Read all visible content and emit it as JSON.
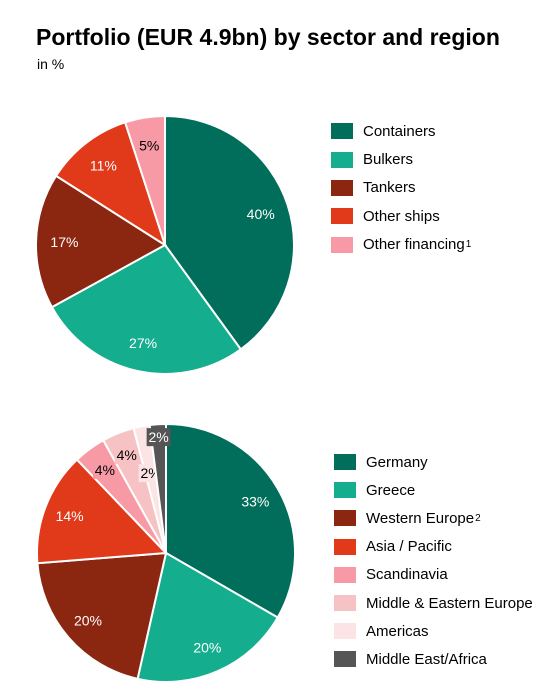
{
  "title": "Portfolio (EUR 4.9bn) by sector and region",
  "subtitle": "in %",
  "chart_data": [
    {
      "type": "pie",
      "categories": [
        "Containers",
        "Bulkers",
        "Tankers",
        "Other ships",
        "Other financing"
      ],
      "values": [
        40,
        27,
        17,
        11,
        5
      ],
      "labels": [
        "40%",
        "27%",
        "17%",
        "11%",
        "5%"
      ],
      "colors": [
        "#006e5a",
        "#14ad8e",
        "#8b2710",
        "#e03a1b",
        "#f89aa5"
      ],
      "label_colors": [
        "#ffffff",
        "#ffffff",
        "#ffffff",
        "#ffffff",
        "#000000"
      ],
      "legend_footnotes": [
        "",
        "",
        "",
        "",
        "1"
      ],
      "legend_position": "right"
    },
    {
      "type": "pie",
      "categories": [
        "Germany",
        "Greece",
        "Western Europe",
        "Asia / Pacific",
        "Scandinavia",
        "Middle & Eastern Europe",
        "Americas",
        "Middle East/Africa"
      ],
      "values": [
        33,
        20,
        20,
        14,
        4,
        4,
        2,
        2
      ],
      "labels": [
        "33%",
        "20%",
        "20%",
        "14%",
        "4%",
        "4%",
        "2%",
        "2%"
      ],
      "colors": [
        "#006e5a",
        "#14ad8e",
        "#8b2710",
        "#e03a1b",
        "#f89aa5",
        "#f7c2c4",
        "#fce4e4",
        "#555555"
      ],
      "label_colors": [
        "#ffffff",
        "#ffffff",
        "#ffffff",
        "#ffffff",
        "#000000",
        "#000000",
        "#000000",
        "#ffffff"
      ],
      "legend_footnotes": [
        "",
        "",
        "2",
        "",
        "",
        "",
        "",
        ""
      ],
      "legend_position": "right"
    }
  ]
}
